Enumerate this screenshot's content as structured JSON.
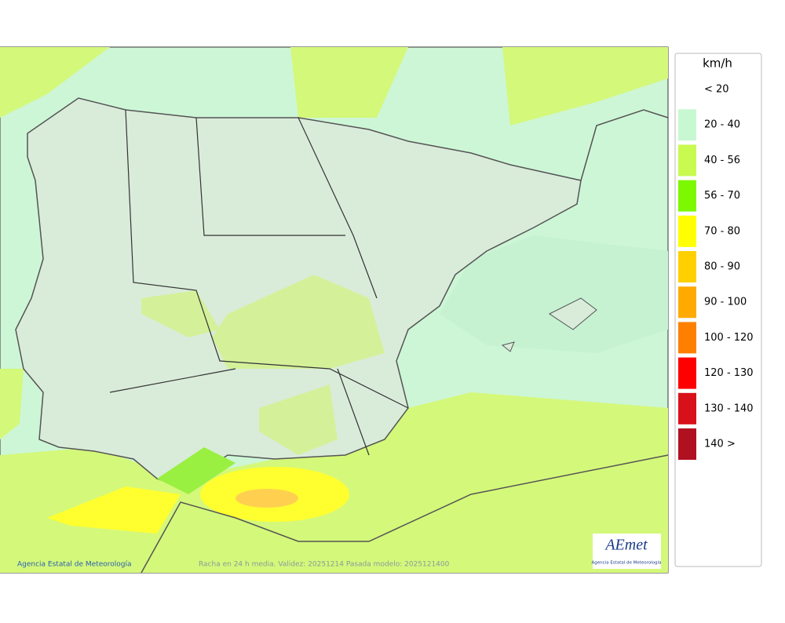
{
  "legend": {
    "title": "km/h",
    "items": [
      {
        "label": "< 20",
        "color": "#ffffff"
      },
      {
        "label": "20 - 40",
        "color": "#c8f8d2"
      },
      {
        "label": "40 - 56",
        "color": "#c8fa50"
      },
      {
        "label": "56 - 70",
        "color": "#7cf800"
      },
      {
        "label": "70 - 80",
        "color": "#ffff00"
      },
      {
        "label": "80 - 90",
        "color": "#ffd000"
      },
      {
        "label": "90 - 100",
        "color": "#ffaa00"
      },
      {
        "label": "100 - 120",
        "color": "#ff8000"
      },
      {
        "label": "120 - 130",
        "color": "#ff0000"
      },
      {
        "label": "130 - 140",
        "color": "#d8101a"
      },
      {
        "label": "140 >",
        "color": "#b01020"
      }
    ]
  },
  "map": {
    "credit": "Agencia Estatal de Meteorología",
    "caption": "Racha en 24 h media. Validez: 20251214 Pasada modelo: 2025121400",
    "logo": {
      "name": "AEmet",
      "subtitle": "Agencia Estatal de Meteorología"
    }
  }
}
